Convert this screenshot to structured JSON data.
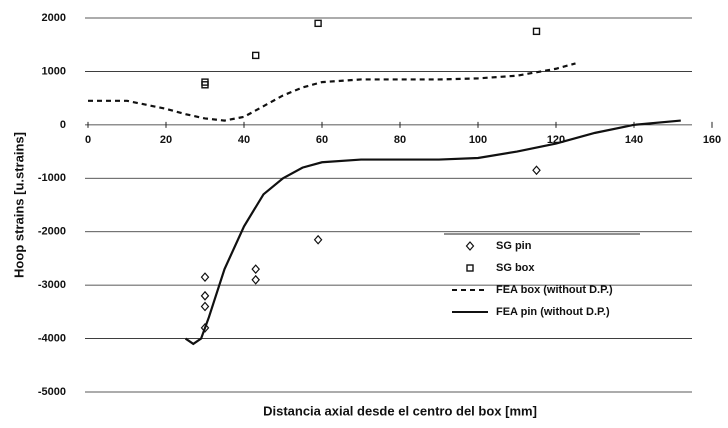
{
  "chart_data": {
    "type": "scatter",
    "x_label": "Distancia axial desde el centro del box  [mm]",
    "y_label": "Hoop strains [u.strains]",
    "xlim": [
      0,
      160
    ],
    "xticks": [
      0,
      20,
      40,
      60,
      80,
      100,
      120,
      140,
      160
    ],
    "ylim": [
      -5000,
      2000
    ],
    "yticks": [
      -5000,
      -4000,
      -3000,
      -2000,
      -1000,
      0,
      1000,
      2000
    ],
    "grid": true,
    "legend": "lower right",
    "series": [
      {
        "name": "SG pin",
        "kind": "scatter",
        "marker": "diamond",
        "color": "#111",
        "x": [
          30,
          30,
          30,
          30,
          43,
          43,
          59,
          115
        ],
        "values": [
          -2850,
          -3200,
          -3400,
          -3800,
          -2700,
          -2900,
          -2150,
          -850
        ]
      },
      {
        "name": "SG box",
        "kind": "scatter",
        "marker": "square",
        "color": "#111",
        "x": [
          30,
          30,
          43,
          59,
          115
        ],
        "values": [
          750,
          800,
          1300,
          1900,
          1750
        ]
      },
      {
        "name": "FEA box (without D.P.)",
        "kind": "line",
        "dash": "dashed",
        "color": "#111",
        "x": [
          0,
          10,
          20,
          25,
          30,
          35,
          40,
          45,
          50,
          55,
          60,
          70,
          80,
          90,
          100,
          110,
          120,
          125
        ],
        "values": [
          450,
          450,
          300,
          200,
          120,
          80,
          150,
          350,
          550,
          700,
          800,
          850,
          850,
          850,
          870,
          920,
          1050,
          1150
        ]
      },
      {
        "name": "FEA pin (without D.P.)",
        "kind": "line",
        "dash": "solid",
        "color": "#111",
        "x": [
          25,
          27,
          29,
          31,
          35,
          40,
          45,
          50,
          55,
          60,
          70,
          80,
          90,
          100,
          110,
          120,
          130,
          140,
          152
        ],
        "values": [
          -4000,
          -4100,
          -4000,
          -3600,
          -2700,
          -1900,
          -1300,
          -1000,
          -800,
          -700,
          -650,
          -650,
          -650,
          -620,
          -500,
          -350,
          -150,
          0,
          80
        ]
      }
    ]
  }
}
